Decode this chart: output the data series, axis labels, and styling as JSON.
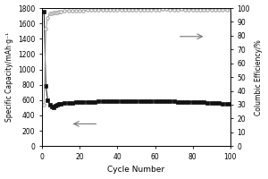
{
  "title": "",
  "xlabel": "Cycle Number",
  "ylabel_left": "Specific Capacity/mAh·g⁻¹",
  "ylabel_right": "Columbic Efficiency/%",
  "xlim": [
    0,
    100
  ],
  "ylim_left": [
    0,
    1800
  ],
  "ylim_right": [
    0,
    100
  ],
  "yticks_left": [
    0,
    200,
    400,
    600,
    800,
    1000,
    1200,
    1400,
    1600,
    1800
  ],
  "yticks_right": [
    0,
    10,
    20,
    30,
    40,
    50,
    60,
    70,
    80,
    90,
    100
  ],
  "xticks": [
    0,
    20,
    40,
    60,
    80,
    100
  ],
  "capacity_cycles": [
    1,
    2,
    3,
    4,
    5,
    6,
    7,
    8,
    9,
    10,
    12,
    14,
    16,
    18,
    20,
    22,
    24,
    26,
    28,
    30,
    32,
    34,
    36,
    38,
    40,
    42,
    44,
    46,
    48,
    50,
    52,
    54,
    56,
    58,
    60,
    62,
    64,
    66,
    68,
    70,
    72,
    74,
    76,
    78,
    80,
    82,
    84,
    86,
    88,
    90,
    92,
    94,
    96,
    98,
    100
  ],
  "capacity_values": [
    1750,
    780,
    600,
    545,
    520,
    510,
    525,
    540,
    548,
    552,
    558,
    562,
    566,
    570,
    572,
    575,
    577,
    578,
    580,
    582,
    583,
    585,
    587,
    586,
    588,
    587,
    588,
    589,
    590,
    590,
    590,
    588,
    587,
    588,
    586,
    585,
    587,
    586,
    584,
    582,
    580,
    579,
    578,
    577,
    576,
    575,
    573,
    570,
    568,
    565,
    562,
    558,
    555,
    550,
    548
  ],
  "efficiency_cycles": [
    1,
    2,
    3,
    4,
    5,
    6,
    7,
    8,
    9,
    10,
    12,
    14,
    16,
    18,
    20,
    22,
    24,
    26,
    28,
    30,
    32,
    34,
    36,
    38,
    40,
    42,
    44,
    46,
    48,
    50,
    52,
    54,
    56,
    58,
    60,
    62,
    64,
    66,
    68,
    70,
    72,
    74,
    76,
    78,
    80,
    82,
    84,
    86,
    88,
    90,
    92,
    94,
    96,
    98,
    100
  ],
  "efficiency_values": [
    30,
    85,
    93,
    96,
    96,
    96.5,
    97,
    97,
    97.2,
    97.5,
    97.8,
    98,
    98,
    98.2,
    98.3,
    98.4,
    98.5,
    98.5,
    98.5,
    98.6,
    98.7,
    98.7,
    98.7,
    98.8,
    98.8,
    98.8,
    98.9,
    98.9,
    98.9,
    99,
    99,
    99,
    99,
    99,
    99,
    99,
    99.1,
    99.1,
    99,
    99,
    99,
    99.1,
    99,
    99,
    99,
    99,
    99,
    99,
    99,
    98.8,
    98.8,
    98.7,
    98.7,
    98.5,
    98.5
  ],
  "capacity_color": "#111111",
  "efficiency_color": "#999999",
  "background_color": "#ffffff"
}
